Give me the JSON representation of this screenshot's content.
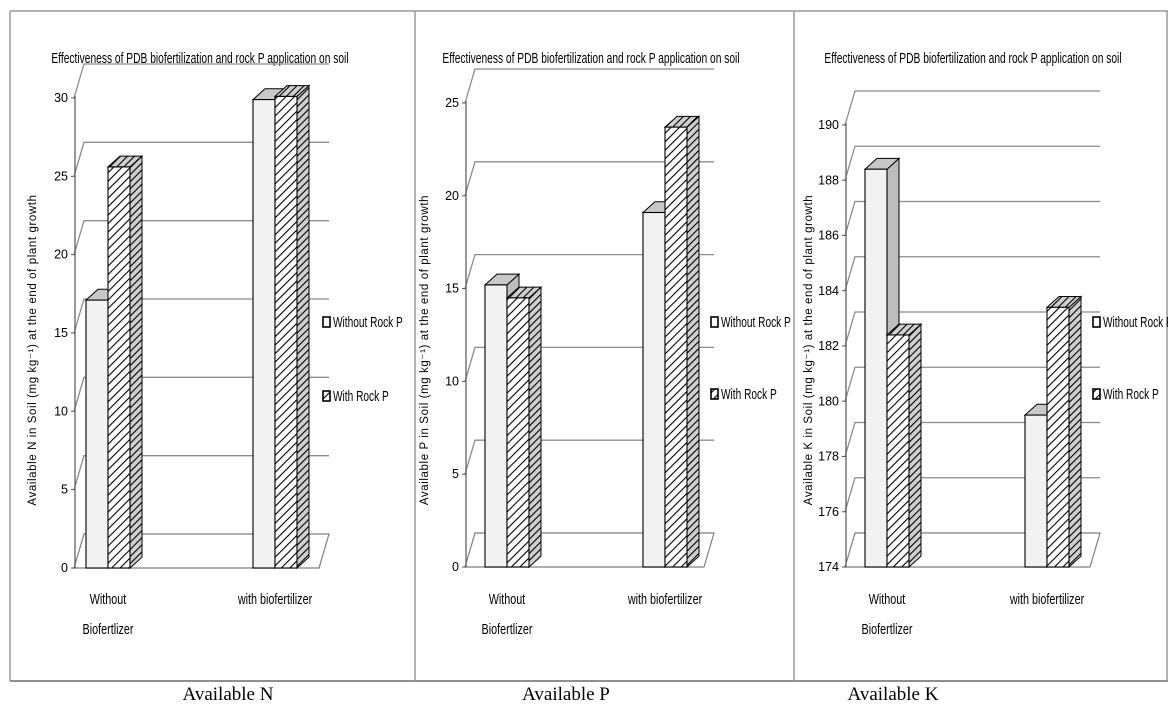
{
  "charts": [
    {
      "caption": "Available N",
      "chart_data": {
        "type": "bar",
        "title": "Effectiveness of PDB biofertilization and rock P application on soil",
        "ylabel": "Available N in Soil (mg kg⁻¹) at the end of plant growth",
        "categories": [
          "Without Biofertlizer",
          "with biofertilizer"
        ],
        "category_lines": [
          [
            "Without",
            "Biofertlizer"
          ],
          [
            "with biofertilizer"
          ]
        ],
        "series": [
          {
            "name": "Without Rock P",
            "values": [
              17.1,
              29.9
            ]
          },
          {
            "name": "With Rock P",
            "values": [
              25.6,
              30.1
            ]
          }
        ],
        "ylim": [
          0,
          30
        ],
        "yticks": [
          0,
          5,
          10,
          15,
          20,
          25,
          30
        ],
        "grid": true,
        "legend": "right"
      }
    },
    {
      "caption": "Available P",
      "chart_data": {
        "type": "bar",
        "title": "Effectiveness of PDB biofertilization and rock P application on soil",
        "ylabel": "Available P in Soil (mg kg⁻¹) at the end of plant growth",
        "categories": [
          "Without Biofertlizer",
          "with biofertilizer"
        ],
        "category_lines": [
          [
            "Without",
            "Biofertlizer"
          ],
          [
            "with biofertilizer"
          ]
        ],
        "series": [
          {
            "name": "Without Rock P",
            "values": [
              15.2,
              19.1
            ]
          },
          {
            "name": "With Rock P",
            "values": [
              14.5,
              23.7
            ]
          }
        ],
        "ylim": [
          0,
          25
        ],
        "yticks": [
          0,
          5,
          10,
          15,
          20,
          25
        ],
        "grid": true,
        "legend": "right"
      }
    },
    {
      "caption": "Available K",
      "chart_data": {
        "type": "bar",
        "title": "Effectiveness of PDB biofertilization and rock P application on soil",
        "ylabel": "Available K in Soil (mg kg⁻¹) at the end of plant growth",
        "categories": [
          "Without Biofertlizer",
          "with biofertilizer"
        ],
        "category_lines": [
          [
            "Without",
            "Biofertlizer"
          ],
          [
            "with biofertilizer"
          ]
        ],
        "series": [
          {
            "name": "Without Rock P",
            "values": [
              188.4,
              179.5
            ]
          },
          {
            "name": "With Rock P",
            "values": [
              182.4,
              183.4
            ]
          }
        ],
        "ylim": [
          174,
          190
        ],
        "yticks": [
          174,
          176,
          178,
          180,
          182,
          184,
          186,
          188,
          190
        ],
        "grid": true,
        "legend": "right"
      }
    }
  ]
}
